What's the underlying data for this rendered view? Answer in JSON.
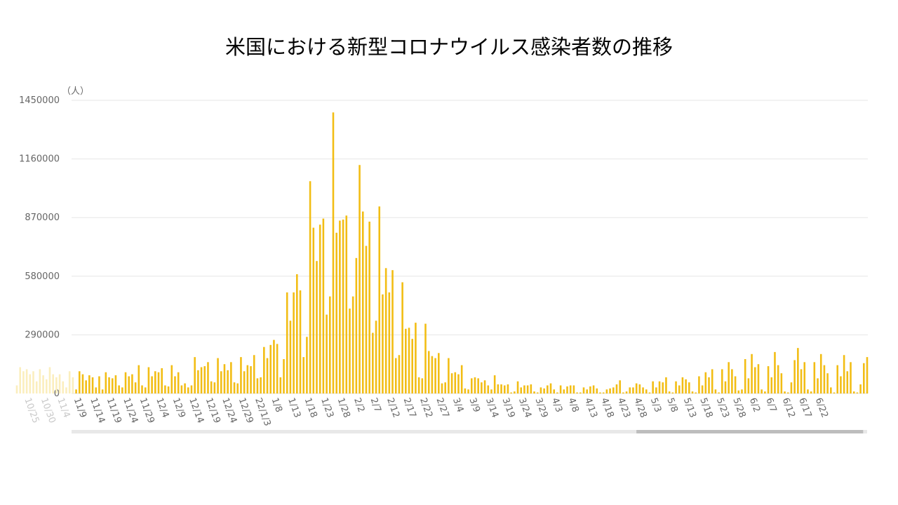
{
  "title": "米国における新型コロナウイルス感染者数の推移",
  "unit": "（人）",
  "colors": {
    "bar": "#f2bd14",
    "bar_faded": "#fbeebd",
    "grid": "#e6e6e6",
    "axis_text": "#666666",
    "scrollbar_track": "#e8e8e8",
    "scrollbar_thumb": "#bdbdbd"
  },
  "chart_data": {
    "type": "bar",
    "ylim": [
      0,
      1450000
    ],
    "yticks": [
      "0",
      "290000",
      "580000",
      "870000",
      "1160000",
      "1450000"
    ],
    "grid": true,
    "start_date": "2021-10-22",
    "x_tick_labels": [
      "10/25",
      "10/30",
      "11/4",
      "11/9",
      "11/14",
      "11/19",
      "11/24",
      "11/29",
      "12/4",
      "12/9",
      "12/14",
      "12/19",
      "12/24",
      "12/29",
      "22/1/3",
      "1/8",
      "1/13",
      "1/18",
      "1/23",
      "1/28",
      "2/2",
      "2/7",
      "2/12",
      "2/17",
      "2/22",
      "2/27",
      "3/4",
      "3/9",
      "3/14",
      "3/19",
      "3/24",
      "3/29",
      "4/3",
      "4/8",
      "4/13",
      "4/18",
      "4/23",
      "4/28",
      "5/3",
      "5/8",
      "5/13",
      "5/18",
      "5/23",
      "5/28",
      "6/2",
      "6/7",
      "6/12",
      "6/17",
      "6/22"
    ],
    "faded_count": 18,
    "values": [
      20000,
      110000,
      95000,
      65000,
      90000,
      80000,
      30000,
      85000,
      20000,
      105000,
      80000,
      75000,
      90000,
      40000,
      30000,
      105000,
      85000,
      95000,
      55000,
      140000,
      40000,
      30000,
      130000,
      85000,
      110000,
      105000,
      125000,
      40000,
      35000,
      140000,
      85000,
      105000,
      40000,
      50000,
      30000,
      40000,
      180000,
      115000,
      130000,
      135000,
      155000,
      60000,
      55000,
      175000,
      110000,
      145000,
      115000,
      155000,
      55000,
      50000,
      180000,
      110000,
      140000,
      135000,
      190000,
      75000,
      80000,
      230000,
      175000,
      240000,
      265000,
      245000,
      80000,
      170000,
      500000,
      360000,
      500000,
      590000,
      510000,
      180000,
      280000,
      1050000,
      820000,
      655000,
      835000,
      865000,
      390000,
      480000,
      1390000,
      795000,
      855000,
      860000,
      880000,
      420000,
      480000,
      670000,
      1130000,
      900000,
      730000,
      850000,
      300000,
      360000,
      925000,
      490000,
      620000,
      500000,
      610000,
      175000,
      190000,
      550000,
      320000,
      325000,
      270000,
      350000,
      80000,
      75000,
      345000,
      210000,
      185000,
      175000,
      200000,
      50000,
      55000,
      175000,
      100000,
      105000,
      95000,
      140000,
      25000,
      20000,
      75000,
      80000,
      75000,
      55000,
      65000,
      40000,
      20000,
      90000,
      45000,
      45000,
      40000,
      45000,
      5000,
      10000,
      60000,
      30000,
      40000,
      40000,
      45000,
      10000,
      5000,
      30000,
      25000,
      40000,
      50000,
      20000,
      5000,
      40000,
      20000,
      35000,
      40000,
      40000,
      5000,
      5000,
      30000,
      20000,
      35000,
      40000,
      25000,
      5000,
      5000,
      20000,
      25000,
      30000,
      45000,
      65000,
      5000,
      10000,
      30000,
      30000,
      50000,
      45000,
      30000,
      20000,
      5000,
      60000,
      30000,
      60000,
      55000,
      80000,
      10000,
      5000,
      60000,
      40000,
      80000,
      70000,
      55000,
      10000,
      5000,
      85000,
      40000,
      105000,
      80000,
      120000,
      20000,
      5000,
      120000,
      60000,
      155000,
      120000,
      85000,
      15000,
      20000,
      170000,
      75000,
      195000,
      130000,
      145000,
      20000,
      10000,
      135000,
      80000,
      205000,
      140000,
      100000,
      10000,
      5000,
      55000,
      165000,
      225000,
      120000,
      155000,
      20000,
      10000,
      155000,
      75000,
      195000,
      140000,
      100000,
      30000,
      5000,
      140000,
      85000,
      190000,
      110000,
      155000,
      10000,
      5000,
      45000,
      150000,
      180000
    ]
  },
  "scrollbar": {
    "thumb_start_fraction": 0.71,
    "thumb_end_fraction": 0.995
  }
}
